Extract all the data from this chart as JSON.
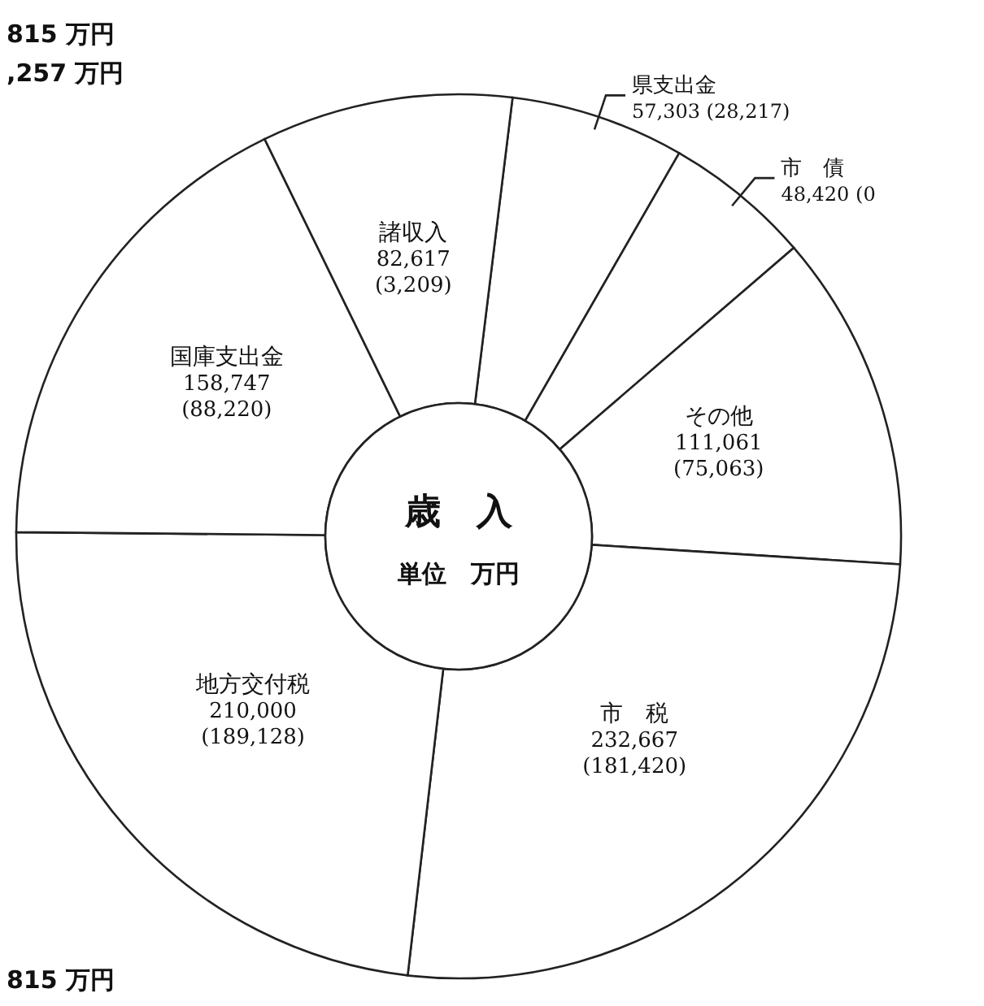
{
  "chart_data": {
    "type": "donut",
    "title": "歳　入",
    "subtitle": "単位　万円",
    "categories": [
      "県支出金",
      "市　債",
      "その他",
      "市　税",
      "地方交付税",
      "国庫支出金",
      "諸収入"
    ],
    "values": [
      57303,
      48420,
      111061,
      232667,
      210000,
      158747,
      82617
    ],
    "colors": [
      "#ffffff",
      "#ffffff",
      "#ffffff",
      "#ffffff",
      "#ffffff",
      "#ffffff",
      "#ffffff"
    ],
    "value_labels": [
      "57,303 (28,217)",
      "48,420 (0",
      "111,061\n(75,063)",
      "232,667\n(181,420)",
      "210,000\n(189,128)",
      "158,747\n(88,220)",
      "82,617\n(3,209)"
    ],
    "annotations": [
      "815 万円",
      ",257 万円",
      "815 万円"
    ]
  }
}
